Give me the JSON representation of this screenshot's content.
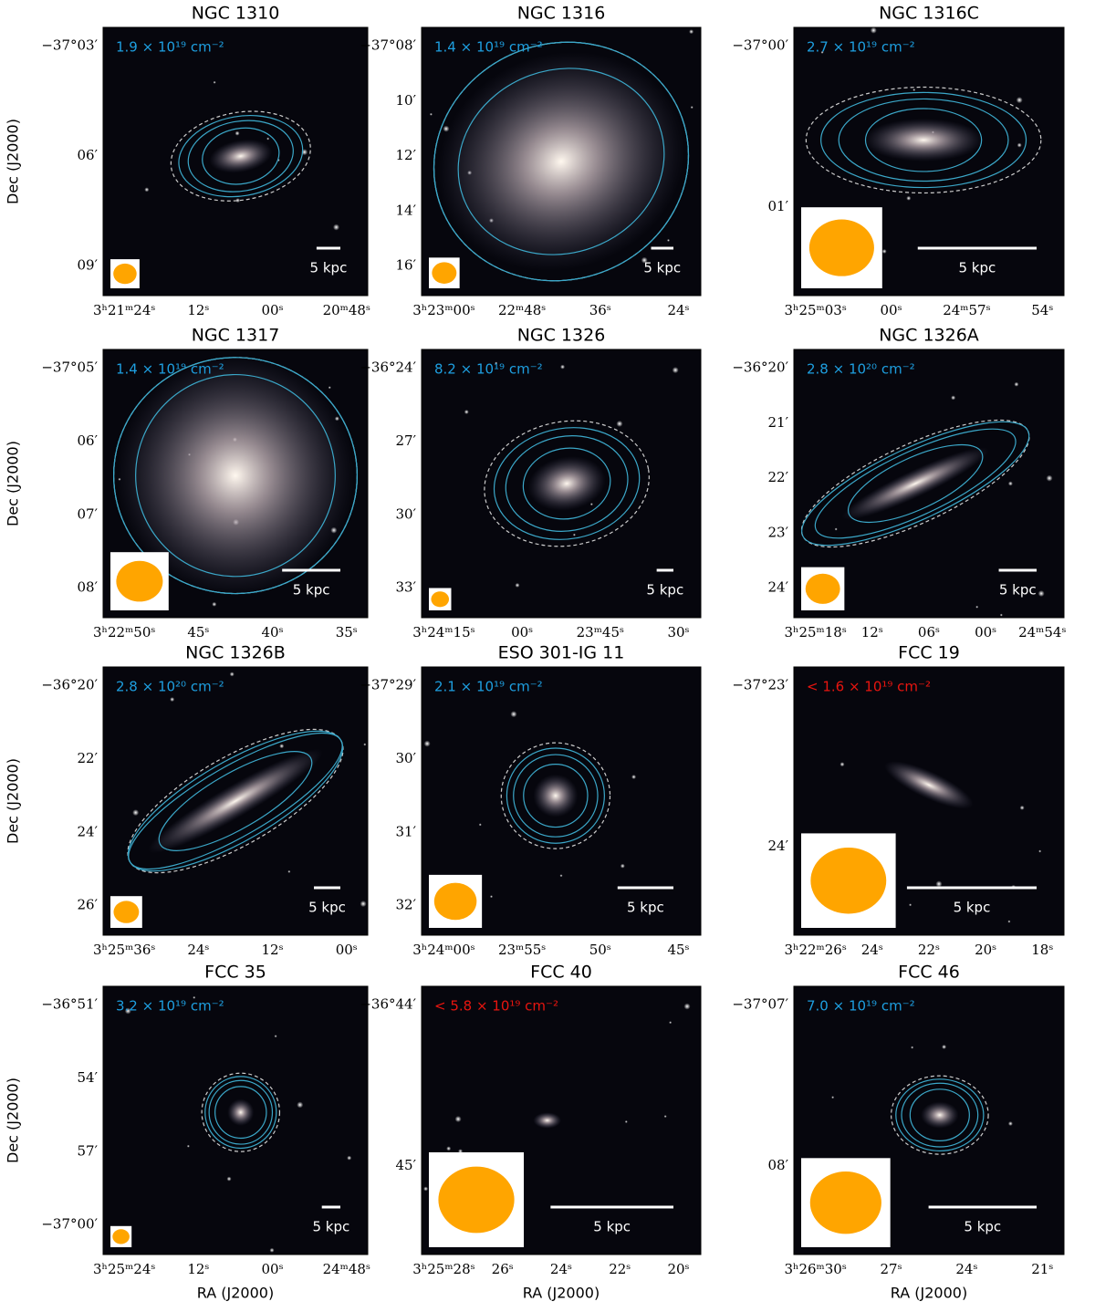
{
  "y_label": "Dec (J2000)",
  "x_label": "RA (J2000)",
  "panels": [
    {
      "title": "NGC 1310",
      "column_density": "1.9 × 10¹⁹ cm⁻²",
      "color": "#1e9fe0",
      "dec_ticks": [
        "−37°03′",
        "06′",
        "09′"
      ],
      "ra_ticks": [
        "3ʰ21ᵐ24ˢ",
        "12ˢ",
        "00ˢ",
        "20ᵐ48ˢ"
      ],
      "scale": "5 kpc"
    },
    {
      "title": "NGC 1316",
      "column_density": "1.4 × 10¹⁹ cm⁻²",
      "color": "#1e9fe0",
      "dec_ticks": [
        "−37°08′",
        "10′",
        "12′",
        "14′",
        "16′"
      ],
      "ra_ticks": [
        "3ʰ23ᵐ00ˢ",
        "22ᵐ48ˢ",
        "36ˢ",
        "24ˢ"
      ],
      "scale": "5 kpc"
    },
    {
      "title": "NGC 1316C",
      "column_density": "2.7 × 10¹⁹ cm⁻²",
      "color": "#1e9fe0",
      "dec_ticks": [
        "−37°00′",
        "01′"
      ],
      "ra_ticks": [
        "3ʰ25ᵐ03ˢ",
        "00ˢ",
        "24ᵐ57ˢ",
        "54ˢ"
      ],
      "scale": "5 kpc"
    },
    {
      "title": "NGC 1317",
      "column_density": "1.4 × 10¹⁹ cm⁻²",
      "color": "#1e9fe0",
      "dec_ticks": [
        "−37°05′",
        "06′",
        "07′",
        "08′"
      ],
      "ra_ticks": [
        "3ʰ22ᵐ50ˢ",
        "45ˢ",
        "40ˢ",
        "35ˢ"
      ],
      "scale": "5 kpc"
    },
    {
      "title": "NGC 1326",
      "column_density": "8.2 × 10¹⁹ cm⁻²",
      "color": "#1e9fe0",
      "dec_ticks": [
        "−36°24′",
        "27′",
        "30′",
        "33′"
      ],
      "ra_ticks": [
        "3ʰ24ᵐ15ˢ",
        "00ˢ",
        "23ᵐ45ˢ",
        "30ˢ"
      ],
      "scale": "5 kpc"
    },
    {
      "title": "NGC 1326A",
      "column_density": "2.8 × 10²⁰ cm⁻²",
      "color": "#1e9fe0",
      "dec_ticks": [
        "−36°20′",
        "21′",
        "22′",
        "23′",
        "24′"
      ],
      "ra_ticks": [
        "3ʰ25ᵐ18ˢ",
        "12ˢ",
        "06ˢ",
        "00ˢ",
        "24ᵐ54ˢ"
      ],
      "scale": "5 kpc"
    },
    {
      "title": "NGC 1326B",
      "column_density": "2.8 × 10²⁰ cm⁻²",
      "color": "#1e9fe0",
      "dec_ticks": [
        "−36°20′",
        "22′",
        "24′",
        "26′"
      ],
      "ra_ticks": [
        "3ʰ25ᵐ36ˢ",
        "24ˢ",
        "12ˢ",
        "00ˢ"
      ],
      "scale": "5 kpc"
    },
    {
      "title": "ESO 301-IG 11",
      "column_density": "2.1 × 10¹⁹ cm⁻²",
      "color": "#1e9fe0",
      "dec_ticks": [
        "−37°29′",
        "30′",
        "31′",
        "32′"
      ],
      "ra_ticks": [
        "3ʰ24ᵐ00ˢ",
        "23ᵐ55ˢ",
        "50ˢ",
        "45ˢ"
      ],
      "scale": "5 kpc"
    },
    {
      "title": "FCC 19",
      "column_density": "< 1.6 × 10¹⁹ cm⁻²",
      "color": "#e8150f",
      "dec_ticks": [
        "−37°23′",
        "24′"
      ],
      "ra_ticks": [
        "3ʰ22ᵐ26ˢ",
        "24ˢ",
        "22ˢ",
        "20ˢ",
        "18ˢ"
      ],
      "scale": "5 kpc"
    },
    {
      "title": "FCC 35",
      "column_density": "3.2 × 10¹⁹ cm⁻²",
      "color": "#1e9fe0",
      "dec_ticks": [
        "−36°51′",
        "54′",
        "57′",
        "−37°00′"
      ],
      "ra_ticks": [
        "3ʰ25ᵐ24ˢ",
        "12ˢ",
        "00ˢ",
        "24ᵐ48ˢ"
      ],
      "scale": "5 kpc"
    },
    {
      "title": "FCC 40",
      "column_density": "< 5.8 × 10¹⁹ cm⁻²",
      "color": "#e8150f",
      "dec_ticks": [
        "−36°44′",
        "45′"
      ],
      "ra_ticks": [
        "3ʰ25ᵐ28ˢ",
        "26ˢ",
        "24ˢ",
        "22ˢ",
        "20ˢ"
      ],
      "scale": "5 kpc"
    },
    {
      "title": "FCC 46",
      "column_density": "7.0 × 10¹⁹ cm⁻²",
      "color": "#1e9fe0",
      "dec_ticks": [
        "−37°07′",
        "08′"
      ],
      "ra_ticks": [
        "3ʰ26ᵐ30ˢ",
        "27ˢ",
        "24ˢ",
        "21ˢ"
      ],
      "scale": "5 kpc"
    }
  ]
}
